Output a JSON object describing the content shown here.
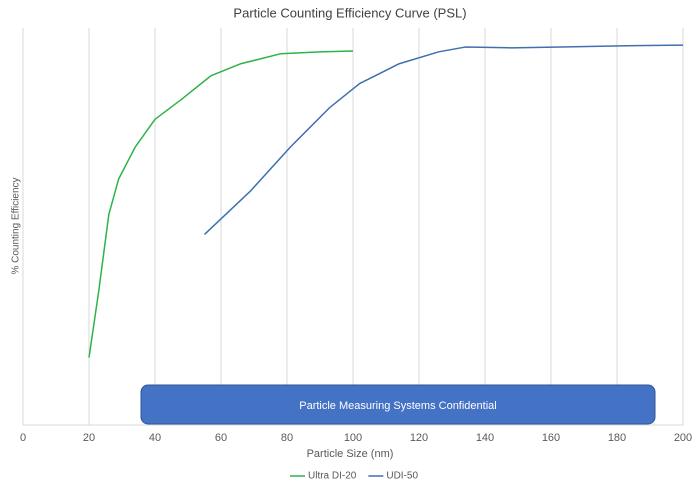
{
  "chart_data": {
    "type": "line",
    "title": "Particle Counting Efficiency Curve (PSL)",
    "x_label": "Particle Size (nm)",
    "y_label": "% Counting Efficiency",
    "annotation": "Particle Measuring Systems Confidential",
    "xlim": [
      0,
      200
    ],
    "xticks": [
      0,
      20,
      40,
      60,
      80,
      100,
      120,
      140,
      160,
      180,
      200
    ],
    "ylim": [
      0,
      100
    ],
    "grid": true,
    "legend": "bottom",
    "series": [
      {
        "name": "Ultra DI-20",
        "color": "#2db34a",
        "x": [
          20,
          23,
          26,
          29,
          34,
          40,
          48,
          57,
          66,
          78,
          90,
          100
        ],
        "values": [
          17,
          34,
          53,
          62,
          70,
          77,
          82,
          88,
          91,
          93.5,
          94,
          94.2
        ]
      },
      {
        "name": "UDI-50",
        "color": "#3f6fb0",
        "x": [
          55,
          69,
          81,
          93,
          102,
          114,
          126,
          134,
          148,
          163,
          181,
          200
        ],
        "values": [
          48,
          59,
          70,
          80,
          86,
          91,
          94,
          95.2,
          95,
          95.2,
          95.5,
          95.7
        ]
      }
    ]
  }
}
